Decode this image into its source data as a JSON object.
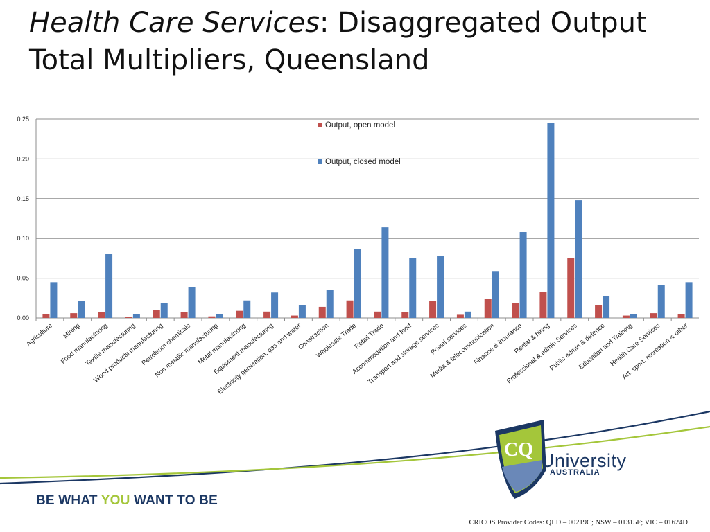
{
  "slide": {
    "title_italic": "Health Care Services",
    "title_rest": ": Disaggregated Output",
    "title_line2": "Total Multipliers, Queensland"
  },
  "chart_data": {
    "type": "bar",
    "categories": [
      "Agriculture",
      "Mining",
      "Food manufacturing",
      "Textile manufacturing",
      "Wood products manufacturing",
      "Petroleum chemicals",
      "Non metallic manufacturing",
      "Metal manufacturing",
      "Equipment manufacturing",
      "Electricity generation, gas and water",
      "Constraction",
      "Wholesale Trade",
      "Retail Trade",
      "Accommodation and food",
      "Transport and storage services",
      "Postal services",
      "Media & telecommunication",
      "Finance & insurance",
      "Rental & hiring",
      "Professional & admin Services",
      "Public admin & defence",
      "Education and Training",
      "Health Care Services",
      "Art, sport, recreation & other"
    ],
    "series": [
      {
        "name": "Output, open model",
        "color": "#c0504d",
        "values": [
          0.005,
          0.006,
          0.007,
          0.001,
          0.01,
          0.007,
          0.002,
          0.009,
          0.008,
          0.003,
          0.014,
          0.022,
          0.008,
          0.007,
          0.021,
          0.004,
          0.024,
          0.019,
          0.033,
          0.075,
          0.016,
          0.003,
          0.006,
          0.005
        ]
      },
      {
        "name": "Output, closed model",
        "color": "#4f81bd",
        "values": [
          0.045,
          0.021,
          0.081,
          0.005,
          0.019,
          0.039,
          0.005,
          0.022,
          0.032,
          0.016,
          0.035,
          0.087,
          0.114,
          0.075,
          0.078,
          0.008,
          0.059,
          0.108,
          0.245,
          0.148,
          0.027,
          0.005,
          0.041,
          0.045
        ]
      }
    ],
    "ylim": [
      0,
      0.25
    ],
    "yticks": [
      "0.00",
      "0.05",
      "0.10",
      "0.15",
      "0.20",
      "0.25"
    ],
    "grid": true,
    "legend_position": "top-center"
  },
  "footer": {
    "slogan_a": "BE WHAT ",
    "slogan_b": "YOU",
    "slogan_c": " WANT TO BE",
    "logo_text": "University",
    "logo_sub": "AUSTRALIA",
    "logo_mark": "CQ",
    "cricos": "CRICOS Provider Codes: QLD – 00219C; NSW – 01315F; VIC – 01624D"
  },
  "colors": {
    "navy": "#1b3763",
    "lime": "#a4c63a"
  }
}
